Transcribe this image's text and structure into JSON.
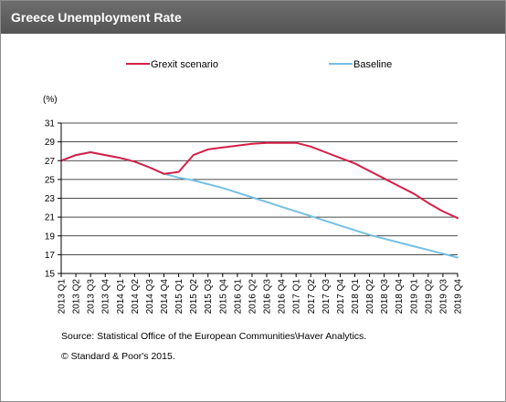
{
  "header": {
    "title": "Greece Unemployment Rate"
  },
  "chart_data": {
    "type": "line",
    "ylabel": "(%)",
    "ylim": [
      15,
      31
    ],
    "yticks": [
      15,
      17,
      19,
      21,
      23,
      25,
      27,
      29,
      31
    ],
    "categories": [
      "2013 Q1",
      "2013 Q2",
      "2013 Q3",
      "2013 Q4",
      "2014 Q1",
      "2014 Q2",
      "2014 Q3",
      "2014 Q4",
      "2015 Q1",
      "2015 Q2",
      "2015 Q3",
      "2015 Q4",
      "2016 Q1",
      "2016 Q2",
      "2016 Q3",
      "2016 Q4",
      "2017 Q1",
      "2017 Q2",
      "2017 Q3",
      "2017 Q4",
      "2018 Q1",
      "2018 Q2",
      "2018 Q3",
      "2018 Q4",
      "2019 Q1",
      "2019 Q2",
      "2019 Q3",
      "2019 Q4"
    ],
    "grid": true,
    "legend_position": "top",
    "series": [
      {
        "name": "Grexit scenario",
        "color": "#d61f47",
        "values": [
          27.0,
          27.6,
          27.9,
          27.6,
          27.3,
          26.9,
          26.3,
          25.6,
          25.8,
          27.6,
          28.2,
          28.4,
          28.6,
          28.8,
          28.9,
          28.9,
          28.9,
          28.5,
          27.9,
          27.3,
          26.7,
          25.9,
          25.1,
          24.3,
          23.5,
          22.5,
          21.6,
          20.9
        ]
      },
      {
        "name": "Baseline",
        "color": "#74c0e4",
        "values": [
          27.0,
          27.6,
          27.9,
          27.6,
          27.3,
          26.9,
          26.3,
          25.6,
          25.2,
          24.9,
          24.5,
          24.1,
          23.6,
          23.1,
          22.6,
          22.1,
          21.6,
          21.1,
          20.6,
          20.1,
          19.6,
          19.1,
          18.7,
          18.3,
          17.9,
          17.5,
          17.1,
          16.7
        ]
      }
    ]
  },
  "notes": {
    "source": "Source: Statistical Office of the European Communities\\Haver Analytics.",
    "copyright": "© Standard & Poor's 2015."
  }
}
